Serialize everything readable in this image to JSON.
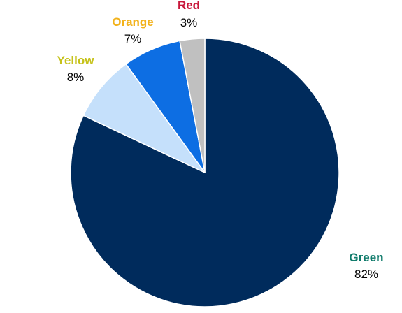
{
  "chart_data": {
    "type": "pie",
    "slices": [
      {
        "label": "Green",
        "value": 82,
        "value_label": "82%",
        "color": "#002b5c",
        "label_color": "#0e7a6a"
      },
      {
        "label": "Yellow",
        "value": 8,
        "value_label": "8%",
        "color": "#c5e0fb",
        "label_color": "#c6c21a"
      },
      {
        "label": "Orange",
        "value": 7,
        "value_label": "7%",
        "color": "#0d6ee3",
        "label_color": "#f2b21b"
      },
      {
        "label": "Red",
        "value": 3,
        "value_label": "3%",
        "color": "#c0c0c0",
        "label_color": "#c8193c"
      }
    ],
    "start_angle": "12 o'clock",
    "direction": "clockwise from Green",
    "legend": "none"
  }
}
